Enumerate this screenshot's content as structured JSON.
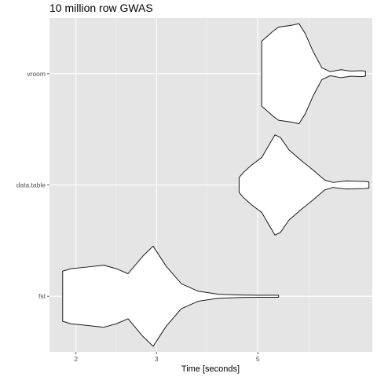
{
  "chart_data": {
    "type": "violin",
    "title": "10 million row GWAS",
    "xlabel": "Time [seconds]",
    "ylabel": "",
    "x_scale": "log10",
    "xlim": [
      1.75,
      8.9
    ],
    "x_ticks": [
      2,
      3,
      5
    ],
    "x_tick_labels": [
      "2",
      "3",
      "5"
    ],
    "categories": [
      "fst",
      "data.table",
      "vroom"
    ],
    "grid": true,
    "colors": {
      "panel_bg": "#e5e5e5",
      "grid_major": "#ffffff",
      "grid_minor": "#f2f2f2",
      "violin_fill": "#ffffff",
      "violin_stroke": "#1a1a1a"
    },
    "series": [
      {
        "category": "fst",
        "density_profile": [
          [
            1.87,
            0.5
          ],
          [
            1.95,
            0.55
          ],
          [
            2.1,
            0.58
          ],
          [
            2.3,
            0.62
          ],
          [
            2.45,
            0.55
          ],
          [
            2.6,
            0.45
          ],
          [
            2.8,
            0.8
          ],
          [
            2.95,
            1.0
          ],
          [
            3.15,
            0.6
          ],
          [
            3.4,
            0.25
          ],
          [
            3.7,
            0.1
          ],
          [
            4.1,
            0.04
          ],
          [
            4.6,
            0.025
          ],
          [
            5.0,
            0.02
          ],
          [
            5.55,
            0.02
          ]
        ]
      },
      {
        "category": "data.table",
        "density_profile": [
          [
            4.55,
            0.15
          ],
          [
            4.65,
            0.25
          ],
          [
            4.85,
            0.4
          ],
          [
            5.1,
            0.55
          ],
          [
            5.25,
            0.75
          ],
          [
            5.45,
            1.0
          ],
          [
            5.6,
            0.95
          ],
          [
            5.85,
            0.7
          ],
          [
            6.2,
            0.5
          ],
          [
            6.6,
            0.3
          ],
          [
            7.0,
            0.1
          ],
          [
            7.3,
            0.05
          ],
          [
            7.8,
            0.08
          ],
          [
            8.6,
            0.07
          ],
          [
            8.75,
            0.06
          ]
        ]
      },
      {
        "category": "vroom",
        "density_profile": [
          [
            5.1,
            0.65
          ],
          [
            5.25,
            0.75
          ],
          [
            5.4,
            0.85
          ],
          [
            5.55,
            0.93
          ],
          [
            5.75,
            0.95
          ],
          [
            5.95,
            0.97
          ],
          [
            6.15,
            1.0
          ],
          [
            6.35,
            0.8
          ],
          [
            6.6,
            0.45
          ],
          [
            6.9,
            0.12
          ],
          [
            7.2,
            0.04
          ],
          [
            7.6,
            0.08
          ],
          [
            8.0,
            0.05
          ],
          [
            8.4,
            0.06
          ],
          [
            8.6,
            0.05
          ]
        ]
      }
    ]
  }
}
